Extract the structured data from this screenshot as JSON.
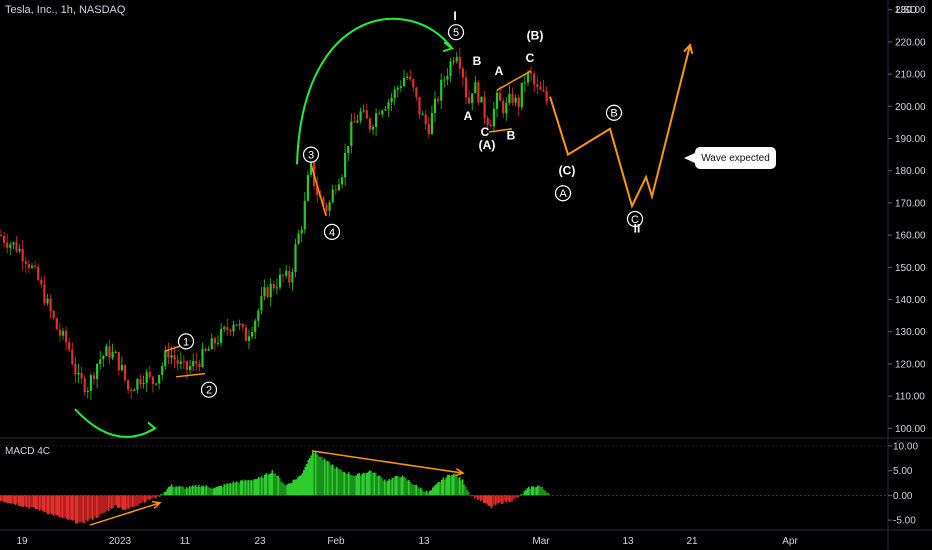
{
  "header": {
    "instrument": "Tesla, Inc., 1h, NASDAQ",
    "currency": "USD",
    "indicator": "MACD 4C",
    "callout": "Wave expected"
  },
  "chart_data": [
    {
      "type": "candlestick",
      "title": "Tesla, Inc., 1h, NASDAQ",
      "y_unit": "USD",
      "ylim": [
        97,
        233
      ],
      "ytick_labels": [
        "230.00",
        "220.00",
        "210.00",
        "200.00",
        "190.00",
        "180.00",
        "170.00",
        "160.00",
        "150.00",
        "140.00",
        "130.00",
        "120.00",
        "110.00",
        "100.00"
      ],
      "ytick_values": [
        230,
        220,
        210,
        200,
        190,
        180,
        170,
        160,
        150,
        140,
        130,
        120,
        110,
        100
      ],
      "xtick_labels": [
        "19",
        "2023",
        "11",
        "23",
        "Feb",
        "13",
        "Mar",
        "13",
        "21",
        "Apr"
      ],
      "price_path": [
        {
          "x": 0,
          "y": 160
        },
        {
          "x": 8,
          "y": 158
        },
        {
          "x": 18,
          "y": 156
        },
        {
          "x": 28,
          "y": 152
        },
        {
          "x": 38,
          "y": 146
        },
        {
          "x": 48,
          "y": 138
        },
        {
          "x": 58,
          "y": 130
        },
        {
          "x": 68,
          "y": 126
        },
        {
          "x": 78,
          "y": 115
        },
        {
          "x": 88,
          "y": 113
        },
        {
          "x": 98,
          "y": 121
        },
        {
          "x": 108,
          "y": 124
        },
        {
          "x": 116,
          "y": 122
        },
        {
          "x": 122,
          "y": 118
        },
        {
          "x": 128,
          "y": 112
        },
        {
          "x": 135,
          "y": 114
        },
        {
          "x": 145,
          "y": 117
        },
        {
          "x": 152,
          "y": 114
        },
        {
          "x": 160,
          "y": 118
        },
        {
          "x": 168,
          "y": 124
        },
        {
          "x": 176,
          "y": 121
        },
        {
          "x": 185,
          "y": 118
        },
        {
          "x": 195,
          "y": 120
        },
        {
          "x": 205,
          "y": 123
        },
        {
          "x": 215,
          "y": 127
        },
        {
          "x": 225,
          "y": 130
        },
        {
          "x": 235,
          "y": 134
        },
        {
          "x": 245,
          "y": 128
        },
        {
          "x": 255,
          "y": 134
        },
        {
          "x": 265,
          "y": 142
        },
        {
          "x": 275,
          "y": 145
        },
        {
          "x": 283,
          "y": 147
        },
        {
          "x": 290,
          "y": 146
        },
        {
          "x": 296,
          "y": 157
        },
        {
          "x": 303,
          "y": 165
        },
        {
          "x": 310,
          "y": 182
        },
        {
          "x": 316,
          "y": 174
        },
        {
          "x": 322,
          "y": 170
        },
        {
          "x": 328,
          "y": 168
        },
        {
          "x": 335,
          "y": 176
        },
        {
          "x": 342,
          "y": 180
        },
        {
          "x": 350,
          "y": 192
        },
        {
          "x": 360,
          "y": 198
        },
        {
          "x": 370,
          "y": 194
        },
        {
          "x": 380,
          "y": 200
        },
        {
          "x": 390,
          "y": 202
        },
        {
          "x": 398,
          "y": 206
        },
        {
          "x": 406,
          "y": 210
        },
        {
          "x": 413,
          "y": 205
        },
        {
          "x": 420,
          "y": 198
        },
        {
          "x": 428,
          "y": 193
        },
        {
          "x": 435,
          "y": 200
        },
        {
          "x": 442,
          "y": 207
        },
        {
          "x": 450,
          "y": 213
        },
        {
          "x": 456,
          "y": 218
        },
        {
          "x": 462,
          "y": 212
        },
        {
          "x": 468,
          "y": 200
        },
        {
          "x": 473,
          "y": 207
        },
        {
          "x": 478,
          "y": 204
        },
        {
          "x": 484,
          "y": 198
        },
        {
          "x": 490,
          "y": 195
        },
        {
          "x": 497,
          "y": 202
        },
        {
          "x": 505,
          "y": 199
        },
        {
          "x": 512,
          "y": 203
        },
        {
          "x": 518,
          "y": 200
        },
        {
          "x": 524,
          "y": 208
        },
        {
          "x": 530,
          "y": 210
        },
        {
          "x": 536,
          "y": 205
        },
        {
          "x": 542,
          "y": 204
        },
        {
          "x": 548,
          "y": 201
        }
      ],
      "projection": [
        {
          "x": 550,
          "y": 203
        },
        {
          "x": 568,
          "y": 185
        },
        {
          "x": 610,
          "y": 193
        },
        {
          "x": 632,
          "y": 169
        },
        {
          "x": 646,
          "y": 178
        },
        {
          "x": 652,
          "y": 172
        },
        {
          "x": 690,
          "y": 219
        }
      ],
      "wave_labels": [
        {
          "text": "1",
          "circled": true,
          "x": 186,
          "y": 127
        },
        {
          "text": "2",
          "circled": true,
          "x": 209,
          "y": 112
        },
        {
          "text": "3",
          "circled": true,
          "x": 311,
          "y": 185
        },
        {
          "text": "4",
          "circled": true,
          "x": 332,
          "y": 161
        },
        {
          "text": "5",
          "circled": true,
          "x": 456,
          "y": 223
        },
        {
          "text": "I",
          "circled": false,
          "x": 455,
          "y": 228
        },
        {
          "text": "B",
          "circled": false,
          "x": 477,
          "y": 214
        },
        {
          "text": "A",
          "circled": false,
          "x": 468,
          "y": 197
        },
        {
          "text": "C",
          "circled": false,
          "x": 485,
          "y": 192
        },
        {
          "text": "(A)",
          "circled": false,
          "x": 487,
          "y": 188
        },
        {
          "text": "B",
          "circled": false,
          "x": 511,
          "y": 191
        },
        {
          "text": "A",
          "circled": false,
          "x": 499,
          "y": 211
        },
        {
          "text": "(B)",
          "circled": false,
          "x": 535,
          "y": 222
        },
        {
          "text": "C",
          "circled": false,
          "x": 530,
          "y": 215
        },
        {
          "text": "(C)",
          "circled": false,
          "x": 567,
          "y": 180
        },
        {
          "text": "A",
          "circled": true,
          "x": 563,
          "y": 173
        },
        {
          "text": "B",
          "circled": true,
          "x": 614,
          "y": 198
        },
        {
          "text": "C",
          "circled": true,
          "x": 635,
          "y": 165
        },
        {
          "text": "II",
          "circled": false,
          "x": 637,
          "y": 162
        }
      ],
      "arcs": [
        {
          "color": "#22ee33",
          "kind": "bottom",
          "from": {
            "x": 75,
            "y": 106
          },
          "to": {
            "x": 155,
            "y": 100
          },
          "depth": 4
        },
        {
          "color": "#22ee33",
          "kind": "top",
          "from": {
            "x": 297,
            "y": 182
          },
          "to": {
            "x": 452,
            "y": 218
          },
          "height": 11
        }
      ],
      "trendlines": [
        {
          "color": "#ff9800",
          "from": {
            "x": 165,
            "y": 124
          },
          "to": {
            "x": 185,
            "y": 126
          }
        },
        {
          "color": "#ff9800",
          "from": {
            "x": 176,
            "y": 116
          },
          "to": {
            "x": 205,
            "y": 117
          }
        },
        {
          "color": "#ff9800",
          "from": {
            "x": 311,
            "y": 182
          },
          "to": {
            "x": 326,
            "y": 166
          }
        },
        {
          "color": "#ff9800",
          "from": {
            "x": 497,
            "y": 205
          },
          "to": {
            "x": 531,
            "y": 211
          }
        },
        {
          "color": "#ff9800",
          "from": {
            "x": 489,
            "y": 192
          },
          "to": {
            "x": 512,
            "y": 193
          }
        }
      ],
      "colors": {
        "up": "#26c926",
        "down": "#e0302b",
        "projection": "#ff9800",
        "arc": "#22ee33",
        "background": "#000000"
      }
    },
    {
      "type": "histogram",
      "title": "MACD 4C",
      "ylim": [
        -7,
        11
      ],
      "ytick_labels": [
        "10.00",
        "5.00",
        "0.00",
        "-5.00"
      ],
      "ytick_values": [
        10,
        5,
        0,
        -5
      ],
      "segments": [
        {
          "x": 0,
          "y": -1
        },
        {
          "x": 20,
          "y": -2
        },
        {
          "x": 40,
          "y": -3
        },
        {
          "x": 60,
          "y": -4.5
        },
        {
          "x": 80,
          "y": -5.7
        },
        {
          "x": 100,
          "y": -4
        },
        {
          "x": 115,
          "y": -2
        },
        {
          "x": 125,
          "y": -3
        },
        {
          "x": 140,
          "y": -1.5
        },
        {
          "x": 160,
          "y": 0
        },
        {
          "x": 170,
          "y": 2
        },
        {
          "x": 185,
          "y": 1.5
        },
        {
          "x": 200,
          "y": 2
        },
        {
          "x": 215,
          "y": 1.5
        },
        {
          "x": 230,
          "y": 2.5
        },
        {
          "x": 245,
          "y": 3
        },
        {
          "x": 260,
          "y": 3.5
        },
        {
          "x": 272,
          "y": 5
        },
        {
          "x": 285,
          "y": 2
        },
        {
          "x": 300,
          "y": 4
        },
        {
          "x": 312,
          "y": 9
        },
        {
          "x": 325,
          "y": 7
        },
        {
          "x": 340,
          "y": 5
        },
        {
          "x": 355,
          "y": 4
        },
        {
          "x": 370,
          "y": 5
        },
        {
          "x": 385,
          "y": 3
        },
        {
          "x": 400,
          "y": 4
        },
        {
          "x": 415,
          "y": 2
        },
        {
          "x": 428,
          "y": 0.5
        },
        {
          "x": 440,
          "y": 3
        },
        {
          "x": 452,
          "y": 4.5
        },
        {
          "x": 462,
          "y": 3
        },
        {
          "x": 470,
          "y": 0
        },
        {
          "x": 480,
          "y": -1
        },
        {
          "x": 490,
          "y": -2.5
        },
        {
          "x": 500,
          "y": -1.5
        },
        {
          "x": 512,
          "y": -1
        },
        {
          "x": 520,
          "y": 0
        },
        {
          "x": 528,
          "y": 1.5
        },
        {
          "x": 538,
          "y": 2
        },
        {
          "x": 548,
          "y": 0.5
        }
      ],
      "trendlines": [
        {
          "color": "#ff9800",
          "from": {
            "x": 312,
            "y": 9
          },
          "to": {
            "x": 463,
            "y": 4.5
          }
        },
        {
          "color": "#ff9800",
          "from": {
            "x": 90,
            "y": -6
          },
          "to": {
            "x": 160,
            "y": -1.5
          }
        }
      ],
      "colors": {
        "positive": "#26c926",
        "negative": "#e0302b",
        "zero": "#555555"
      }
    }
  ]
}
